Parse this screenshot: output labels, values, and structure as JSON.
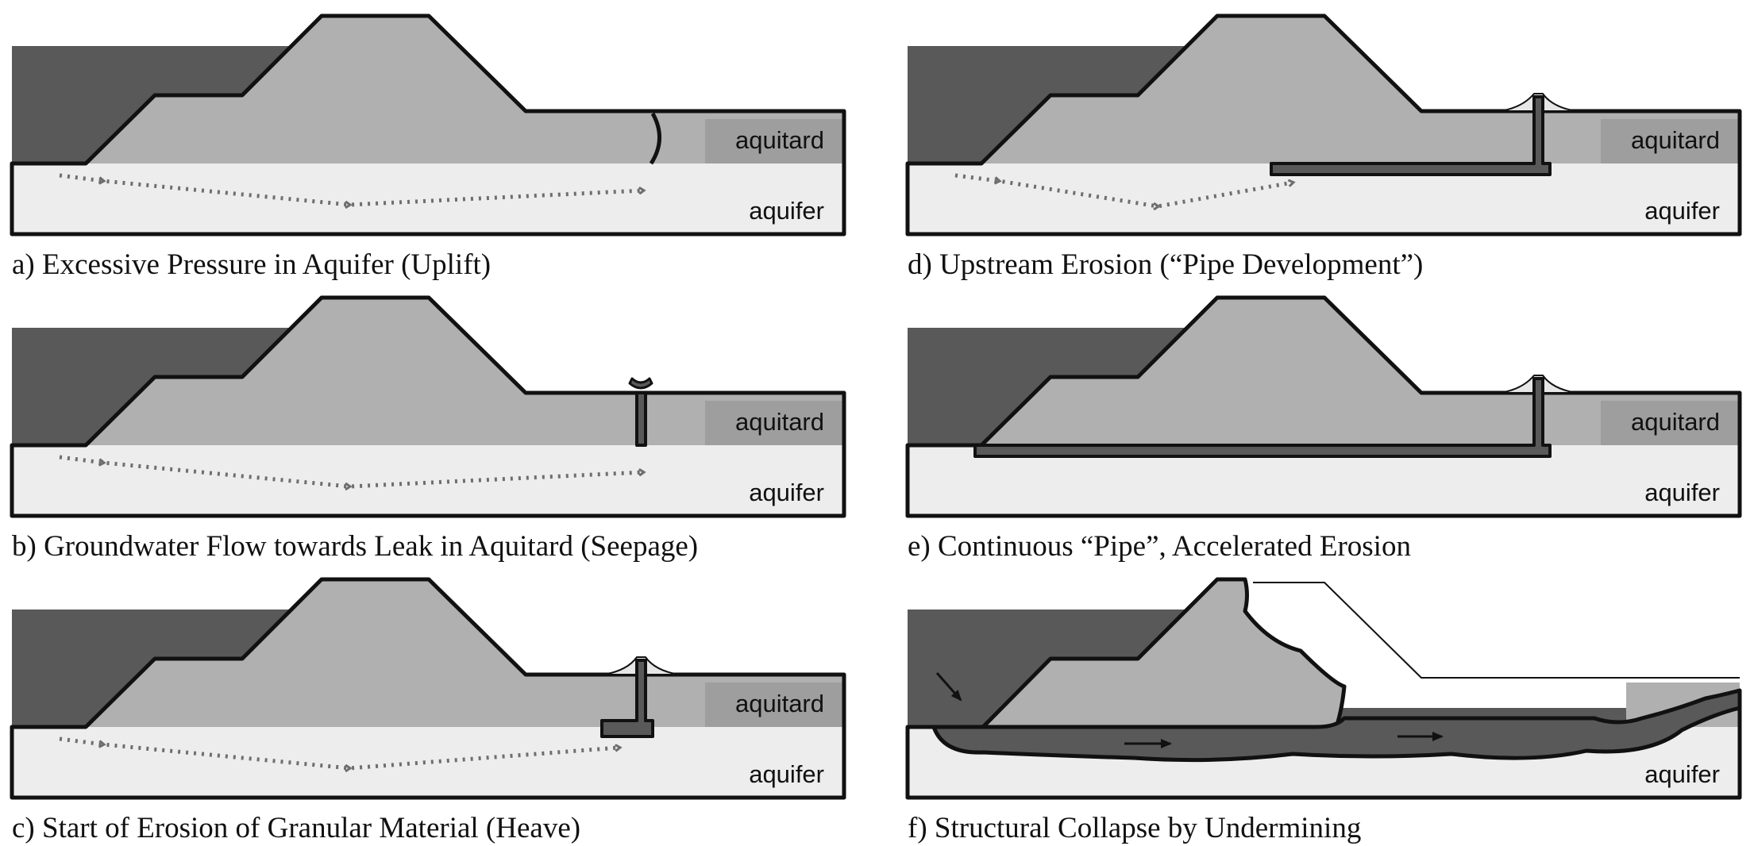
{
  "colors": {
    "water": "#595959",
    "levee": "#b0b0b0",
    "aquitard": "#b0b0b0",
    "aquitard_label_bg": "#9e9e9e",
    "aquifer": "#ededed",
    "outline": "#111111",
    "flow_arrow": "#6e6e6e",
    "sand_boil": "#e6e6e6"
  },
  "panels": [
    {
      "id": "a",
      "caption": "a) Excessive Pressure in Aquifer (Uplift)",
      "aquitard_label": "aquitard",
      "aquifer_label": "aquifer"
    },
    {
      "id": "b",
      "caption": "b) Groundwater Flow towards Leak in Aquitard (Seepage)",
      "aquitard_label": "aquitard",
      "aquifer_label": "aquifer"
    },
    {
      "id": "c",
      "caption": "c) Start of Erosion of Granular Material (Heave)",
      "aquitard_label": "aquitard",
      "aquifer_label": "aquifer"
    },
    {
      "id": "d",
      "caption": "d) Upstream Erosion (“Pipe Development”)",
      "aquitard_label": "aquitard",
      "aquifer_label": "aquifer"
    },
    {
      "id": "e",
      "caption": "e) Continuous “Pipe”, Accelerated Erosion",
      "aquitard_label": "aquitard",
      "aquifer_label": "aquifer"
    },
    {
      "id": "f",
      "caption": "f) Structural Collapse by Undermining",
      "aquifer_label": "aquifer"
    }
  ]
}
